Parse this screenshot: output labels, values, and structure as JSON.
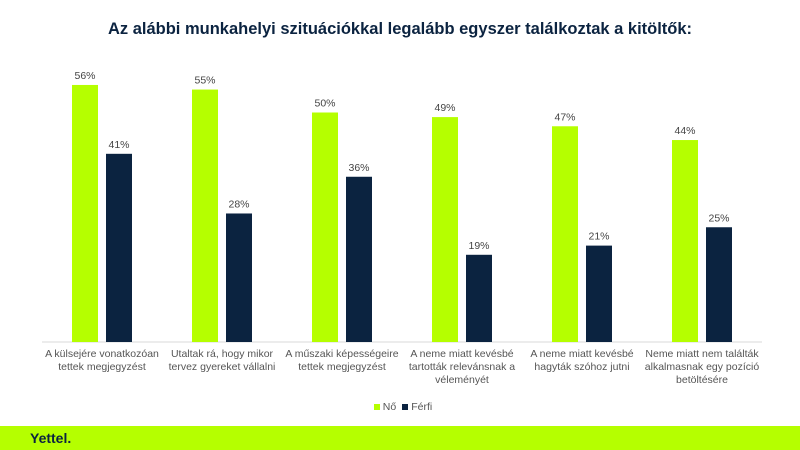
{
  "chart_data": {
    "type": "bar",
    "title": "Az alábbi munkahelyi szituációkkal legalább egyszer találkoztak a kitöltők:",
    "categories": [
      "A külsejére vonatkozóan tettek megjegyzést",
      "Utaltak rá, hogy mikor tervez gyereket vállalni",
      "A műszaki képességeire tettek megjegyzést",
      "A neme miatt kevésbé tartották relevánsnak a véleményét",
      "A neme miatt kevésbé hagyták szóhoz jutni",
      "Neme miatt nem találták alkalmasnak egy pozíció betöltésére"
    ],
    "series": [
      {
        "name": "Nő",
        "color": "#b5ff00",
        "values": [
          56,
          55,
          50,
          49,
          47,
          44
        ]
      },
      {
        "name": "Férfi",
        "color": "#0b2340",
        "values": [
          41,
          28,
          36,
          19,
          21,
          25
        ]
      }
    ],
    "unit": "%",
    "ylim": [
      0,
      60
    ],
    "grid": false,
    "legend": "bottom"
  },
  "footer": {
    "logo": "Yettel."
  }
}
